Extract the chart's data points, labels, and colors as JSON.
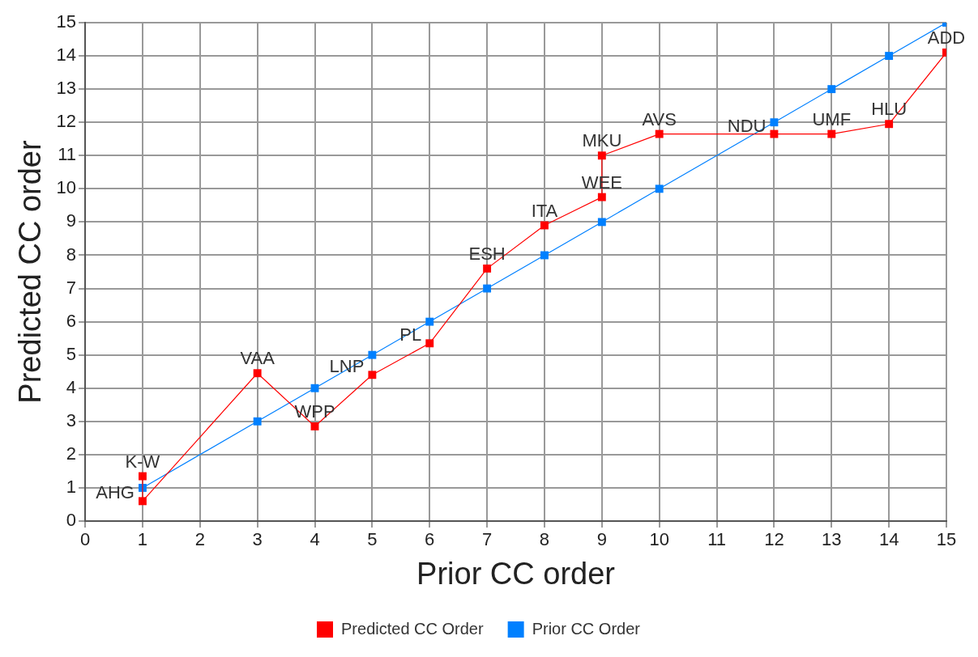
{
  "chart_data": {
    "type": "line",
    "xlabel": "Prior CC order",
    "ylabel": "Predicted CC order",
    "xlim": [
      0,
      15
    ],
    "xticks": [
      0,
      1,
      2,
      3,
      4,
      5,
      6,
      7,
      8,
      9,
      10,
      11,
      12,
      13,
      14,
      15
    ],
    "ylim": [
      0,
      15
    ],
    "yticks": [
      0,
      1,
      2,
      3,
      4,
      5,
      6,
      7,
      8,
      9,
      10,
      11,
      12,
      13,
      14,
      15
    ],
    "grid": true,
    "legend": "bottom",
    "marker": "square",
    "line_style": "solid",
    "series": [
      {
        "name": "Predicted CC Order",
        "color": "#ff0000",
        "x": [
          1,
          1,
          3,
          4,
          5,
          6,
          7,
          8,
          9,
          9,
          10,
          12,
          13,
          14,
          15
        ],
        "values": [
          1.35,
          0.6,
          4.45,
          2.85,
          4.4,
          5.35,
          7.6,
          8.9,
          9.75,
          11.0,
          11.65,
          11.65,
          11.65,
          11.95,
          14.1
        ]
      },
      {
        "name": "Prior CC Order",
        "color": "#0080ff",
        "x": [
          1,
          3,
          4,
          5,
          6,
          7,
          8,
          9,
          10,
          12,
          13,
          14,
          15
        ],
        "values": [
          1,
          3,
          4,
          5,
          6,
          7,
          8,
          9,
          10,
          12,
          13,
          14,
          15
        ]
      }
    ],
    "annotations": [
      {
        "text": "K-W",
        "x": 1,
        "y": 1.35
      },
      {
        "text": "AHG",
        "x": 1,
        "y": 0.6
      },
      {
        "text": "VAA",
        "x": 3,
        "y": 4.45
      },
      {
        "text": "WPP",
        "x": 4,
        "y": 2.85
      },
      {
        "text": "LNP",
        "x": 5,
        "y": 4.4
      },
      {
        "text": "PL",
        "x": 6,
        "y": 5.35
      },
      {
        "text": "ESH",
        "x": 7,
        "y": 7.6
      },
      {
        "text": "ITA",
        "x": 8,
        "y": 8.9
      },
      {
        "text": "WEE",
        "x": 9,
        "y": 9.75
      },
      {
        "text": "MKU",
        "x": 9,
        "y": 11.0
      },
      {
        "text": "AVS",
        "x": 10,
        "y": 11.65
      },
      {
        "text": "NDU",
        "x": 12,
        "y": 11.65
      },
      {
        "text": "UMF",
        "x": 13,
        "y": 11.65
      },
      {
        "text": "HLU",
        "x": 14,
        "y": 11.95
      },
      {
        "text": "ADD",
        "x": 15,
        "y": 14.1
      }
    ]
  }
}
